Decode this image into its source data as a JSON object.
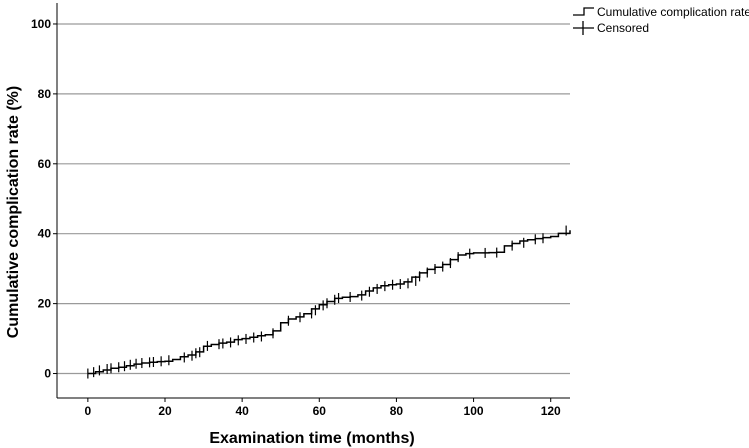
{
  "chart_data": {
    "type": "line",
    "subtype": "step",
    "xlabel": "Examination time (months)",
    "ylabel": "Cumulative complication rate (%)",
    "xlim": [
      -8,
      125
    ],
    "ylim": [
      -7,
      106
    ],
    "xticks": [
      0,
      20,
      40,
      60,
      80,
      100,
      120
    ],
    "yticks": [
      0,
      20,
      40,
      60,
      80,
      100
    ],
    "grid": "horizontal",
    "legend_position": "top-right",
    "series": [
      {
        "name": "Cumulative complication rate",
        "style": "step",
        "color": "#000000",
        "x": [
          0,
          2,
          4,
          6,
          8,
          10,
          12,
          14,
          16,
          18,
          20,
          22,
          24,
          26,
          28,
          30,
          32,
          34,
          36,
          38,
          40,
          42,
          44,
          46,
          48,
          50,
          52,
          54,
          56,
          58,
          60,
          62,
          64,
          66,
          68,
          70,
          72,
          74,
          76,
          78,
          80,
          82,
          84,
          86,
          88,
          90,
          92,
          94,
          96,
          98,
          100,
          102,
          104,
          106,
          108,
          110,
          112,
          114,
          116,
          118,
          120,
          122,
          125
        ],
        "y": [
          0,
          0.5,
          1,
          1.5,
          1.8,
          2.2,
          2.7,
          3,
          3.2,
          3.4,
          3.5,
          4,
          4.8,
          5.3,
          6.2,
          7.8,
          8.3,
          8.7,
          9,
          9.7,
          10,
          10.4,
          10.8,
          11.1,
          12.2,
          14.5,
          15.6,
          16.2,
          17.1,
          18.5,
          19.7,
          20.6,
          21.5,
          21.8,
          22,
          22.5,
          23.6,
          24.5,
          25.1,
          25.4,
          25.6,
          26.2,
          27.6,
          28.8,
          29.8,
          30.4,
          31.2,
          32.6,
          33.9,
          34.3,
          34.5,
          34.5,
          34.6,
          34.7,
          36.5,
          37.2,
          37.9,
          38.3,
          38.6,
          38.9,
          39.2,
          40.1,
          41
        ]
      },
      {
        "name": "Censored",
        "style": "marker-plus",
        "color": "#000000",
        "x": [
          0,
          1.5,
          3,
          5,
          6,
          8,
          9.5,
          11,
          12.5,
          14,
          16,
          17,
          19,
          21,
          25,
          27,
          28,
          29,
          31,
          34,
          35,
          37,
          39,
          41,
          43,
          45,
          48,
          52,
          55,
          58,
          59,
          61,
          62,
          64,
          65,
          68,
          71,
          73,
          75,
          77,
          79,
          81,
          83,
          85,
          86,
          88,
          90,
          92,
          94,
          96,
          99,
          103,
          106,
          110,
          113,
          116,
          118,
          124
        ],
        "y": [
          0,
          0.4,
          0.9,
          1.3,
          1.5,
          1.8,
          2.1,
          2.5,
          2.8,
          3,
          3.2,
          3.3,
          3.5,
          3.8,
          4.6,
          5.1,
          5.8,
          6.1,
          7.9,
          8.4,
          8.6,
          8.9,
          9.5,
          9.9,
          10.3,
          10.6,
          11.5,
          15.1,
          16.1,
          17.2,
          18.1,
          19.5,
          20.1,
          21.1,
          21.6,
          21.9,
          22.3,
          23.4,
          24.2,
          25,
          25.4,
          25.6,
          25.8,
          26.5,
          27.8,
          28.9,
          29.9,
          30.6,
          31.6,
          33.3,
          34.3,
          34.5,
          34.6,
          36.6,
          37.4,
          38.4,
          38.7,
          40.9
        ]
      }
    ]
  }
}
